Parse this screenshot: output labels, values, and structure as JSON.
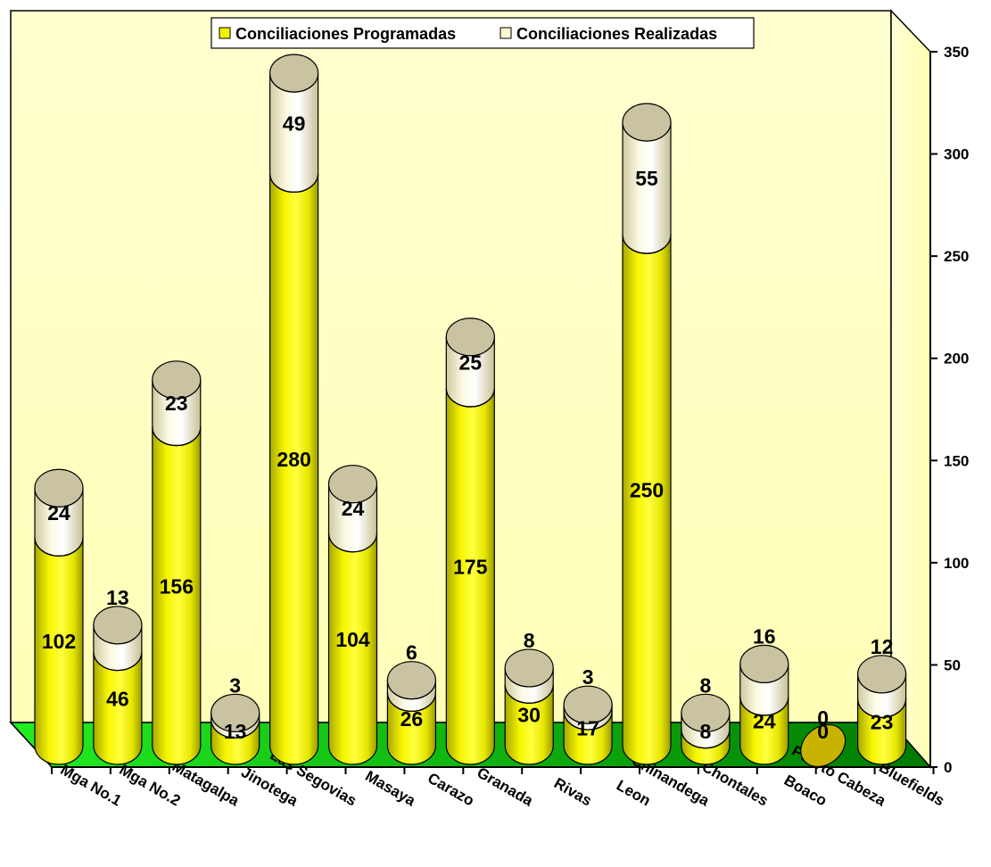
{
  "chart_data": {
    "type": "bar",
    "stacked": true,
    "style": "3d-cylinder",
    "categories": [
      "Mga No.1",
      "Mga No.2",
      "Matagalpa",
      "Jinotega",
      "Las Segovias",
      "Masaya",
      "Carazo",
      "Granada",
      "Rivas",
      "Leon",
      "Chinandega",
      "Chontales",
      "Boaco",
      "Puerto Cabeza",
      "Bluefields"
    ],
    "series": [
      {
        "name": "Conciliaciones Programadas",
        "values": [
          102,
          46,
          156,
          13,
          280,
          104,
          26,
          175,
          30,
          17,
          250,
          8,
          24,
          0,
          23
        ],
        "color": "#f3f300"
      },
      {
        "name": "Conciliaciones Realizadas",
        "values": [
          24,
          13,
          23,
          3,
          49,
          24,
          6,
          25,
          8,
          3,
          55,
          8,
          16,
          0,
          12
        ],
        "color": "#fbf8d2"
      }
    ],
    "ylim": [
      0,
      350
    ],
    "yticks": [
      "0",
      "50",
      "100",
      "150",
      "200",
      "250",
      "300",
      "350"
    ],
    "ytick_values": [
      0,
      50,
      100,
      150,
      200,
      250,
      300,
      350
    ],
    "y_axis_side": "right",
    "legend_position": "top",
    "grid": false,
    "colors": {
      "wall": "#ffffc0",
      "floor": "#00aa00",
      "floor_light": "#00ee00"
    }
  }
}
